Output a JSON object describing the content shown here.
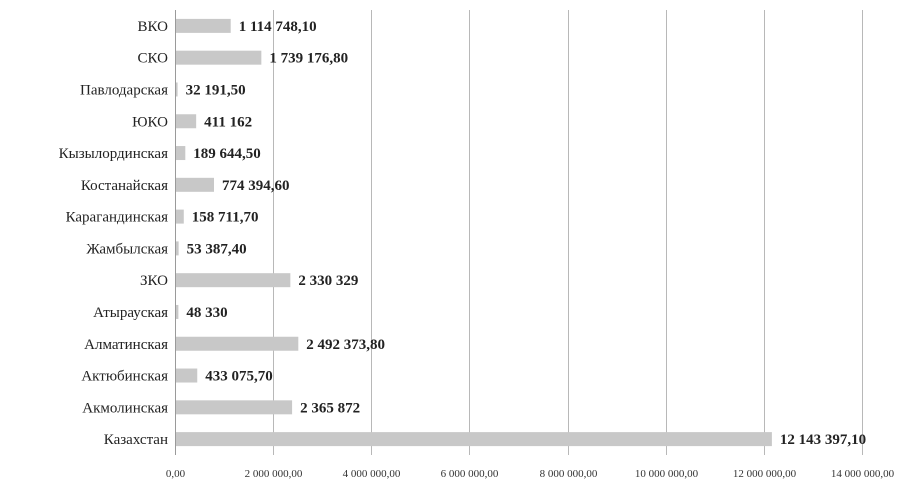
{
  "chart_data": {
    "type": "bar",
    "orientation": "horizontal",
    "categories": [
      "ВКО",
      "СКО",
      "Павлодарская",
      "ЮКО",
      "Кызылординская",
      "Костанайская",
      "Карагандинская",
      "Жамбылская",
      "ЗКО",
      "Атырауская",
      "Алматинская",
      "Актюбинская",
      "Акмолинская",
      "Казахстан"
    ],
    "values": [
      1114748.1,
      1739176.8,
      32191.5,
      411162,
      189644.5,
      774394.6,
      158711.7,
      53387.4,
      2330329,
      48330,
      2492373.8,
      433075.7,
      2365872,
      12143397.1
    ],
    "data_labels": [
      "1 114 748,10",
      "1 739 176,80",
      "32 191,50",
      "411 162",
      "189 644,50",
      "774 394,60",
      "158 711,70",
      "53 387,40",
      "2 330 329",
      "48 330",
      "2 492 373,80",
      "433 075,70",
      "2 365 872",
      "12 143 397,10"
    ],
    "xlim": [
      0,
      14000000
    ],
    "x_ticks": [
      "0,00",
      "2 000 000,00",
      "4 000 000,00",
      "6 000 000,00",
      "8 000 000,00",
      "10 000 000,00",
      "12 000 000,00",
      "14 000 000,00"
    ],
    "grid": "vertical",
    "legend": "none",
    "bar_color": "#c8c8c8",
    "title": "",
    "xlabel": "",
    "ylabel": ""
  }
}
